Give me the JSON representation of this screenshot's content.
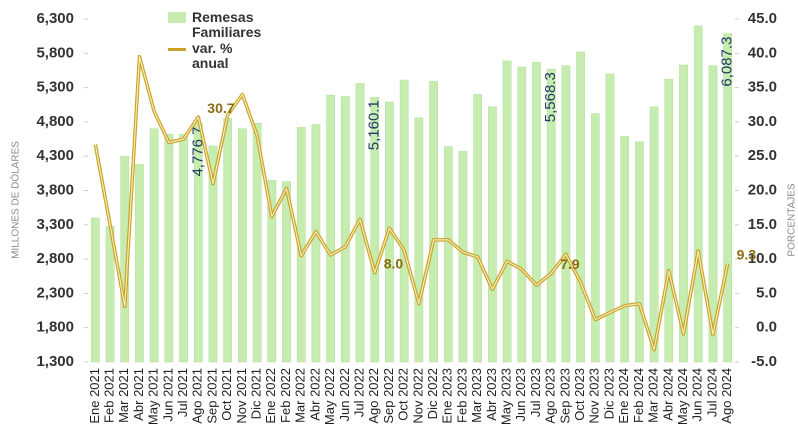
{
  "chart_data": {
    "type": "bar-line",
    "y_label": "MILLONES DE DÓLARES",
    "y2_label": "PORCENTAJES",
    "categories": [
      "Ene 2021",
      "Feb 2021",
      "Mar 2021",
      "Abr 2021",
      "May 2021",
      "Jun 2021",
      "Jul 2021",
      "Ago 2021",
      "Sep 2021",
      "Oct 2021",
      "Nov 2021",
      "Dic 2021",
      "Ene 2022",
      "Feb 2022",
      "Mar 2022",
      "Abr 2022",
      "May 2022",
      "Jun 2022",
      "Jul 2022",
      "Ago 2022",
      "Sep 2022",
      "Oct 2022",
      "Nov 2022",
      "Dic 2022",
      "Ene 2023",
      "Feb 2023",
      "Mar 2023",
      "Abr 2023",
      "May 2023",
      "Jun 2023",
      "Jul 2023",
      "Ago 2023",
      "Sep 2023",
      "Oct 2023",
      "Nov 2023",
      "Dic 2023",
      "Ene 2024",
      "Feb 2024",
      "Mar 2024",
      "Abr 2024",
      "May 2024",
      "Jun 2024",
      "Jul 2024",
      "Ago 2024"
    ],
    "series": [
      {
        "name": "Remesas Familiares",
        "type": "bar",
        "color": "#c6ecb0",
        "values": [
          3400,
          3280,
          4300,
          4180,
          4700,
          4620,
          4620,
          4776.7,
          4450,
          4850,
          4700,
          4780,
          3950,
          3930,
          4720,
          4760,
          5190,
          5170,
          5360,
          5160.1,
          5090,
          5410,
          4860,
          5390,
          4440,
          4370,
          5200,
          5020,
          5690,
          5600,
          5670,
          5568.3,
          5620,
          5820,
          4920,
          5500,
          4590,
          4510,
          5020,
          5420,
          5630,
          6200,
          5620,
          6087.3
        ],
        "value_labels": [
          null,
          null,
          null,
          null,
          null,
          null,
          null,
          "4,776.7",
          null,
          null,
          null,
          null,
          null,
          null,
          null,
          null,
          null,
          null,
          null,
          "5,160.1",
          null,
          null,
          null,
          null,
          null,
          null,
          null,
          null,
          null,
          null,
          null,
          "5,568.3",
          null,
          null,
          null,
          null,
          null,
          null,
          null,
          null,
          null,
          null,
          null,
          "6,087.3"
        ]
      },
      {
        "name": "var. % anual",
        "type": "line",
        "axis": "y2",
        "color": "#c9a227",
        "values": [
          26.7,
          15,
          3.1,
          39.5,
          31.5,
          27,
          27.5,
          30.7,
          21,
          31,
          34,
          28,
          16.2,
          20.3,
          10.5,
          14,
          10.6,
          11.8,
          15.8,
          8.0,
          14.5,
          11.3,
          3.5,
          12.8,
          12.8,
          11,
          10.3,
          5.6,
          9.7,
          8.5,
          6.2,
          7.9,
          10.7,
          6.6,
          1.2,
          2.2,
          3.2,
          3.5,
          -3.2,
          8.3,
          -0.9,
          11.2,
          -1,
          9.3
        ],
        "value_labels": [
          null,
          null,
          null,
          null,
          null,
          null,
          null,
          "30.7",
          null,
          null,
          null,
          null,
          null,
          null,
          null,
          null,
          null,
          null,
          null,
          "8.0",
          null,
          null,
          null,
          null,
          null,
          null,
          null,
          null,
          null,
          null,
          null,
          "7.9",
          null,
          null,
          null,
          null,
          null,
          null,
          null,
          null,
          null,
          null,
          null,
          "9.3"
        ]
      }
    ],
    "ylim": [
      1300,
      6300
    ],
    "yticks": [
      {
        "value": 1300,
        "label": "1,300"
      },
      {
        "value": 1800,
        "label": "1,800"
      },
      {
        "value": 2300,
        "label": "2,300"
      },
      {
        "value": 2800,
        "label": "2,800"
      },
      {
        "value": 3300,
        "label": "3,300"
      },
      {
        "value": 3800,
        "label": "3,800"
      },
      {
        "value": 4300,
        "label": "4,300"
      },
      {
        "value": 4800,
        "label": "4,800"
      },
      {
        "value": 5300,
        "label": "5,300"
      },
      {
        "value": 5800,
        "label": "5,800"
      },
      {
        "value": 6300,
        "label": "6,300"
      }
    ],
    "y2lim": [
      -5,
      45
    ],
    "y2ticks": [
      {
        "value": -5,
        "label": "-5.0"
      },
      {
        "value": 0,
        "label": "0.0"
      },
      {
        "value": 5,
        "label": "5.0"
      },
      {
        "value": 10,
        "label": "10.0"
      },
      {
        "value": 15,
        "label": "15.0"
      },
      {
        "value": 20,
        "label": "20.0"
      },
      {
        "value": 25,
        "label": "25.0"
      },
      {
        "value": 30,
        "label": "30.0"
      },
      {
        "value": 35,
        "label": "35.0"
      },
      {
        "value": 40,
        "label": "40.0"
      },
      {
        "value": 45,
        "label": "45.0"
      }
    ],
    "grid": false
  }
}
